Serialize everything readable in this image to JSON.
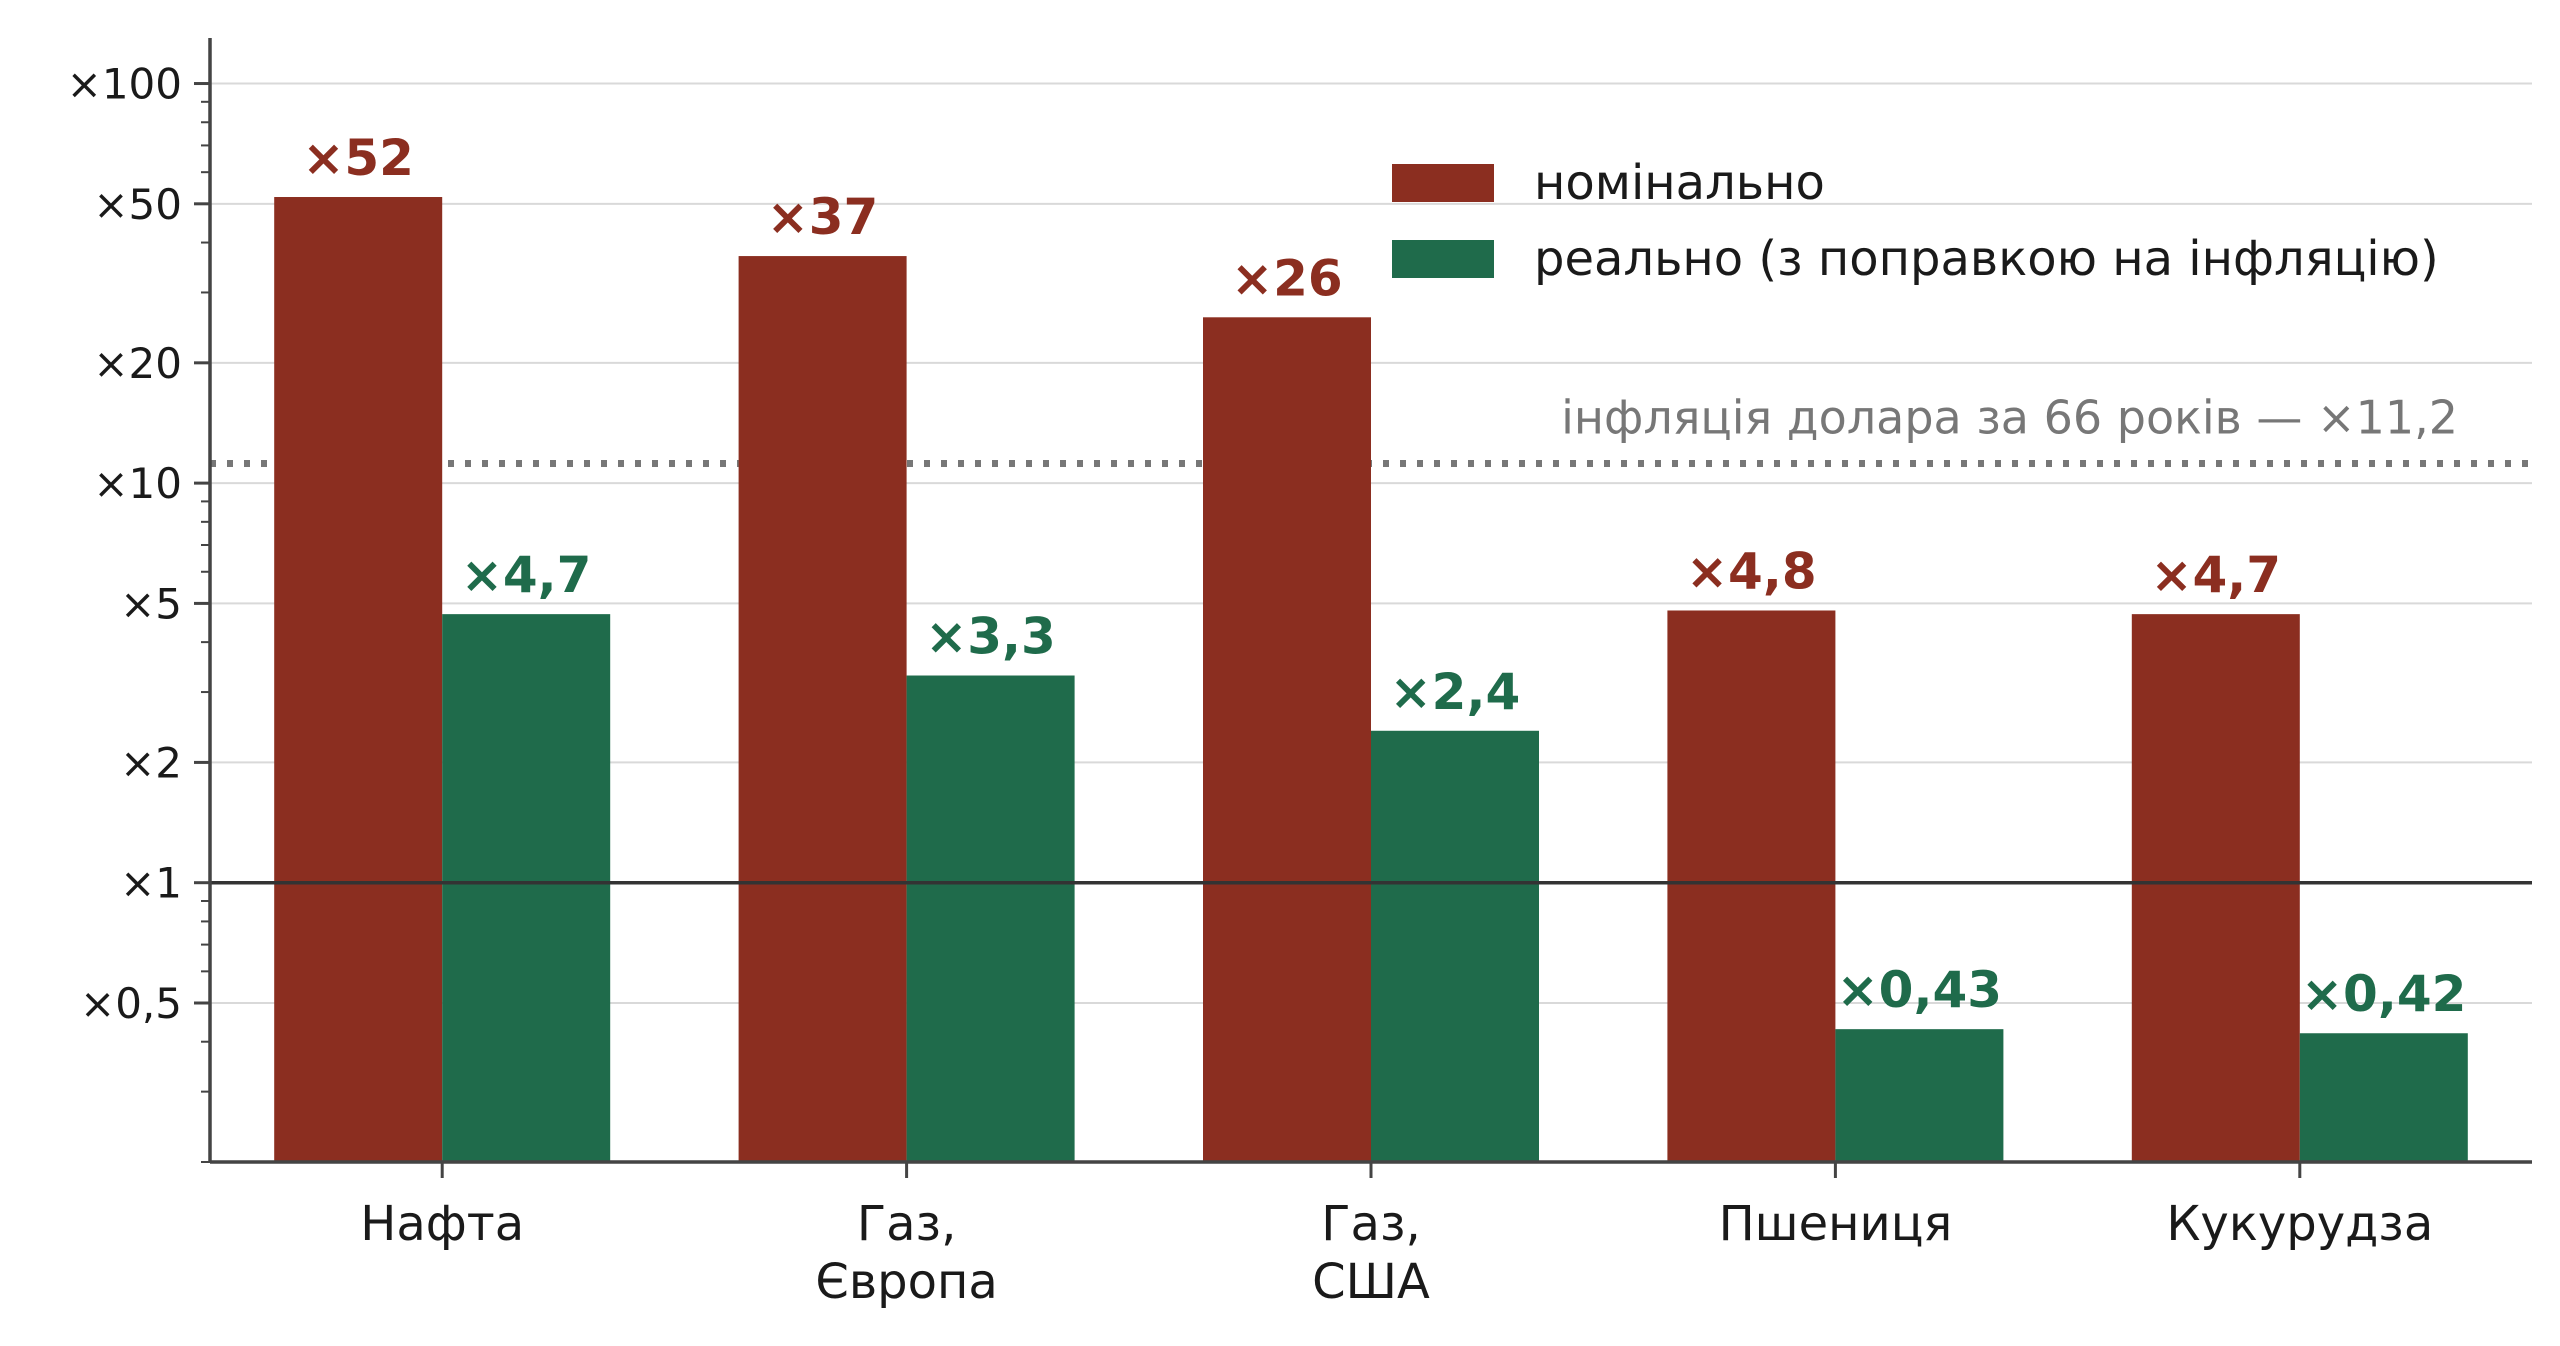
{
  "chart_data": {
    "type": "bar",
    "scale": "log",
    "categories": [
      [
        "Нафта"
      ],
      [
        "Газ,",
        "Європа"
      ],
      [
        "Газ,",
        "США"
      ],
      [
        "Пшениця"
      ],
      [
        "Кукурудза"
      ]
    ],
    "series": [
      {
        "name": "номінально",
        "color": "#8b2e20",
        "values": [
          52,
          37,
          26,
          4.8,
          4.7
        ],
        "labels": [
          "×52",
          "×37",
          "×26",
          "×4,8",
          "×4,7"
        ]
      },
      {
        "name": "реально (з поправкою на інфляцію)",
        "color": "#1f6b4b",
        "values": [
          4.7,
          3.3,
          2.4,
          0.43,
          0.42
        ],
        "labels": [
          "×4,7",
          "×3,3",
          "×2,4",
          "×0,43",
          "×0,42"
        ]
      }
    ],
    "ylim": [
      0.2,
      130
    ],
    "yticks": [
      {
        "value": 0.5,
        "label": "×0,5"
      },
      {
        "value": 1,
        "label": "×1"
      },
      {
        "value": 2,
        "label": "×2"
      },
      {
        "value": 5,
        "label": "×5"
      },
      {
        "value": 10,
        "label": "×10"
      },
      {
        "value": 20,
        "label": "×20"
      },
      {
        "value": 50,
        "label": "×50"
      },
      {
        "value": 100,
        "label": "×100"
      }
    ],
    "baseline": 1,
    "reference_line": {
      "value": 11.2,
      "label": "інфляція долара за 66 років — ×11,2",
      "style": "dotted",
      "color": "#777777"
    },
    "grid": true,
    "legend": "top-right"
  }
}
